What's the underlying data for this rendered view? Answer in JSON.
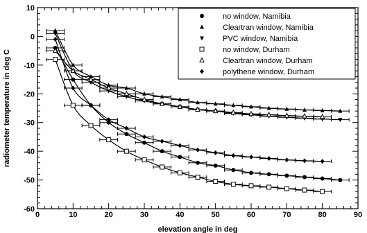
{
  "chart_data": {
    "type": "scatter",
    "xlabel": "elevation angle in deg",
    "ylabel": "radiometer temperature in deg C",
    "xlim": [
      0,
      90
    ],
    "ylim": [
      -60,
      10
    ],
    "xticks": [
      0,
      10,
      20,
      30,
      40,
      50,
      60,
      70,
      80,
      90
    ],
    "yticks": [
      -60,
      -50,
      -40,
      -30,
      -20,
      -10,
      0,
      10
    ],
    "xtick_labels": [
      "0",
      "10",
      "20",
      "30",
      "40",
      "50",
      "60",
      "70",
      "80",
      "90"
    ],
    "ytick_labels": [
      "-60",
      "-50",
      "-40",
      "-30",
      "-20",
      "-10",
      "0",
      "10"
    ],
    "grid": false,
    "legend_position": "top-right",
    "series": [
      {
        "name": "no window, Namibia",
        "marker": "filled-circle",
        "x": [
          5,
          10,
          15,
          20,
          25,
          30,
          35,
          40,
          45,
          50,
          55,
          60,
          65,
          70,
          75,
          80,
          85
        ],
        "y": [
          -4,
          -15,
          -24,
          -30,
          -34,
          -37,
          -40,
          -42,
          -44,
          -45,
          -46.5,
          -47.5,
          -48,
          -48.5,
          -49,
          -49.5,
          -50
        ]
      },
      {
        "name": "Cleartran window, Namibia",
        "marker": "filled-triangle-up",
        "x": [
          5,
          10,
          15,
          20,
          25,
          30,
          35,
          40,
          45,
          50,
          55,
          60,
          65,
          70,
          75,
          80,
          85
        ],
        "y": [
          2,
          -10,
          -14,
          -17,
          -18,
          -20,
          -21,
          -22,
          -23,
          -23.5,
          -24,
          -24.5,
          -25,
          -25.3,
          -25.6,
          -25.8,
          -26
        ]
      },
      {
        "name": "PVC window, Namibia",
        "marker": "filled-triangle-down",
        "x": [
          5,
          10,
          15,
          20,
          25,
          30,
          35,
          40,
          45,
          50,
          55,
          60,
          65,
          70,
          75,
          80,
          85
        ],
        "y": [
          1,
          -12,
          -16,
          -19,
          -21,
          -22.5,
          -23.5,
          -24.5,
          -25.5,
          -26,
          -26.8,
          -27.3,
          -27.8,
          -28.2,
          -28.5,
          -28.8,
          -29
        ]
      },
      {
        "name": "no window, Durham",
        "marker": "open-square",
        "x": [
          5,
          10,
          15,
          20,
          25,
          30,
          35,
          40,
          45,
          50,
          55,
          60,
          65,
          70,
          75,
          80
        ],
        "y": [
          -8,
          -24,
          -31,
          -36,
          -40,
          -43,
          -45.5,
          -47.5,
          -49,
          -50.5,
          -51.5,
          -52,
          -52.5,
          -53,
          -53.5,
          -54
        ]
      },
      {
        "name": "Cleartran window, Durham",
        "marker": "open-triangle-up",
        "x": [
          5,
          10,
          15,
          20,
          25,
          30,
          35,
          40,
          45,
          50,
          55,
          60,
          65,
          70,
          75,
          80
        ],
        "y": [
          -5,
          -12,
          -15,
          -18,
          -20,
          -22,
          -23.5,
          -24.5,
          -25.5,
          -26,
          -26.5,
          -27,
          -27.3,
          -27.6,
          -27.8,
          -28
        ]
      },
      {
        "name": "polythene window, Durham",
        "marker": "filled-diamond",
        "x": [
          5,
          10,
          15,
          20,
          25,
          30,
          35,
          40,
          45,
          50,
          55,
          60,
          65,
          70,
          75,
          80
        ],
        "y": [
          -1,
          -18,
          -24,
          -29,
          -32,
          -35,
          -36.5,
          -38,
          -39.5,
          -40.5,
          -41.5,
          -42,
          -42.5,
          -43,
          -43.3,
          -43.5
        ]
      }
    ]
  }
}
